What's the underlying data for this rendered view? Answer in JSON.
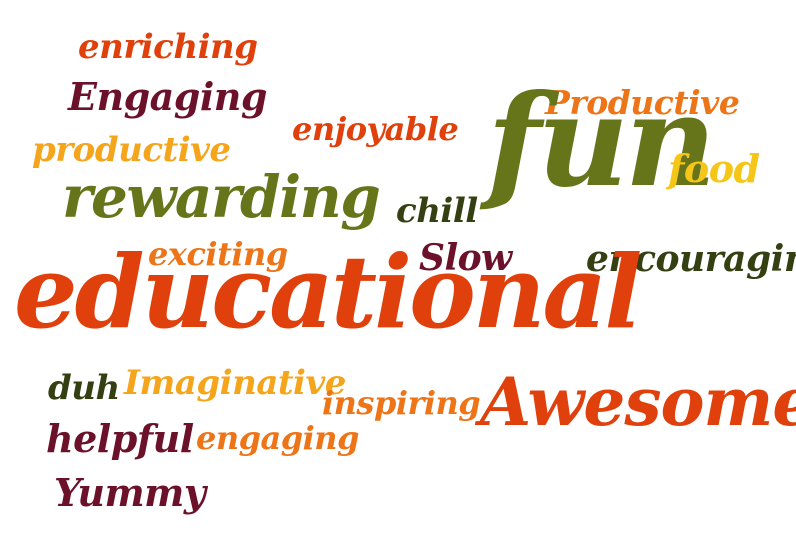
{
  "colors": {
    "orange_red": "#e0400b",
    "orange": "#ee7418",
    "gold": "#f4a51c",
    "yellow": "#f5c518",
    "olive": "#66741a",
    "dark_olive": "#344012",
    "maroon": "#6b1129"
  },
  "words": [
    {
      "id": "enriching",
      "text": "enriching",
      "color": "#e0400b"
    },
    {
      "id": "engaging-cap",
      "text": "Engaging",
      "color": "#6b1129"
    },
    {
      "id": "productive-lc",
      "text": "productive",
      "color": "#f4a51c"
    },
    {
      "id": "enjoyable",
      "text": "enjoyable",
      "color": "#e0400b"
    },
    {
      "id": "productive-cap",
      "text": "Productive",
      "color": "#ee7418"
    },
    {
      "id": "fun",
      "text": "fun",
      "color": "#66741a"
    },
    {
      "id": "food",
      "text": "food",
      "color": "#f5c518"
    },
    {
      "id": "rewarding",
      "text": "rewarding",
      "color": "#66741a"
    },
    {
      "id": "chill",
      "text": "chill",
      "color": "#344012"
    },
    {
      "id": "exciting",
      "text": "exciting",
      "color": "#ee7418"
    },
    {
      "id": "slow",
      "text": "Slow",
      "color": "#6b1129"
    },
    {
      "id": "encouraging",
      "text": "encouraging",
      "color": "#344012"
    },
    {
      "id": "educational",
      "text": "educational",
      "color": "#e0400b"
    },
    {
      "id": "duh",
      "text": "duh",
      "color": "#344012"
    },
    {
      "id": "imaginative",
      "text": "Imaginative",
      "color": "#f4a51c"
    },
    {
      "id": "inspiring",
      "text": "inspiring",
      "color": "#ee7418"
    },
    {
      "id": "awesome",
      "text": "Awesome",
      "color": "#e0400b"
    },
    {
      "id": "helpful",
      "text": "helpful",
      "color": "#6b1129"
    },
    {
      "id": "engaging-lc",
      "text": "engaging",
      "color": "#ee7418"
    },
    {
      "id": "yummy",
      "text": "Yummy",
      "color": "#6b1129"
    }
  ]
}
